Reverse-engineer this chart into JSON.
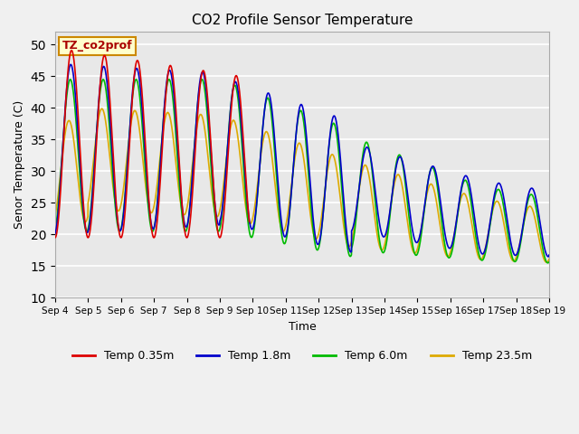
{
  "title": "CO2 Profile Sensor Temperature",
  "xlabel": "Time",
  "ylabel": "Senor Temperature (C)",
  "ylim": [
    10,
    52
  ],
  "yticks": [
    10,
    15,
    20,
    25,
    30,
    35,
    40,
    45,
    50
  ],
  "background_color": "#e8e8e8",
  "plot_bg": "#e8e8e8",
  "fig_bg": "#f0f0f0",
  "annotation_text": "TZ_co2prof",
  "annotation_bgcolor": "#ffffcc",
  "annotation_edgecolor": "#cc8800",
  "annotation_textcolor": "#aa0000",
  "legend_entries": [
    "Temp 0.35m",
    "Temp 1.8m",
    "Temp 6.0m",
    "Temp 23.5m"
  ],
  "line_colors": [
    "#dd0000",
    "#0000cc",
    "#00bb00",
    "#ddaa00"
  ],
  "x_tick_labels": [
    "Sep 4",
    "Sep 5",
    "Sep 6",
    "Sep 7",
    "Sep 8",
    "Sep 9",
    "Sep 10",
    "Sep 11",
    "Sep 12",
    "Sep 13",
    "Sep 14",
    "Sep 15",
    "Sep 16",
    "Sep 17",
    "Sep 18",
    "Sep 19"
  ],
  "figsize": [
    6.4,
    4.8
  ],
  "dpi": 100
}
